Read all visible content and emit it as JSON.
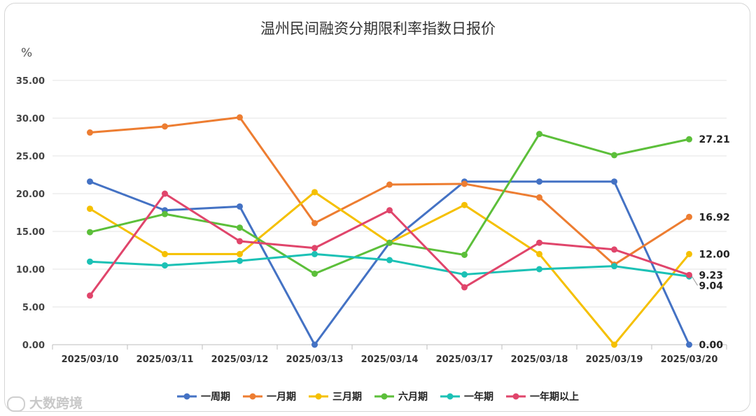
{
  "chart_data": {
    "type": "line",
    "title": "温州民间融资分期限利率指数日报价",
    "ylabel": "%",
    "ylim": [
      0,
      35
    ],
    "yticks": [
      "0.00",
      "5.00",
      "10.00",
      "15.00",
      "20.00",
      "25.00",
      "30.00",
      "35.00"
    ],
    "grid": true,
    "legend": "bottom",
    "categories": [
      "2025/03/10",
      "2025/03/11",
      "2025/03/12",
      "2025/03/13",
      "2025/03/14",
      "2025/03/17",
      "2025/03/18",
      "2025/03/19",
      "2025/03/20"
    ],
    "series": [
      {
        "name": "一周期",
        "color": "#4472c4",
        "values": [
          21.6,
          17.8,
          18.3,
          0.0,
          13.5,
          21.6,
          21.6,
          21.6,
          0.0
        ],
        "end_label": "0.00"
      },
      {
        "name": "一月期",
        "color": "#ed7d31",
        "values": [
          28.1,
          28.9,
          30.1,
          16.1,
          21.2,
          21.3,
          19.5,
          10.6,
          16.92
        ],
        "end_label": "16.92"
      },
      {
        "name": "三月期",
        "color": "#f5c000",
        "values": [
          18.0,
          12.0,
          12.0,
          20.2,
          13.5,
          18.5,
          12.0,
          0.0,
          12.0
        ],
        "end_label": "12.00"
      },
      {
        "name": "六月期",
        "color": "#5cbf3a",
        "values": [
          14.9,
          17.3,
          15.5,
          9.4,
          13.5,
          11.9,
          27.9,
          25.1,
          27.21
        ],
        "end_label": "27.21"
      },
      {
        "name": "一年期",
        "color": "#1bc1b5",
        "values": [
          11.0,
          10.5,
          11.1,
          12.0,
          11.2,
          9.3,
          10.0,
          10.4,
          9.04
        ],
        "end_label": "9.04"
      },
      {
        "name": "一年期以上",
        "color": "#e0456b",
        "values": [
          6.5,
          20.0,
          13.7,
          12.8,
          17.8,
          7.6,
          13.5,
          12.6,
          9.23
        ],
        "end_label": "9.23"
      }
    ]
  },
  "watermark": {
    "icon": "chat-bubble-icon",
    "text": "大数跨境"
  }
}
